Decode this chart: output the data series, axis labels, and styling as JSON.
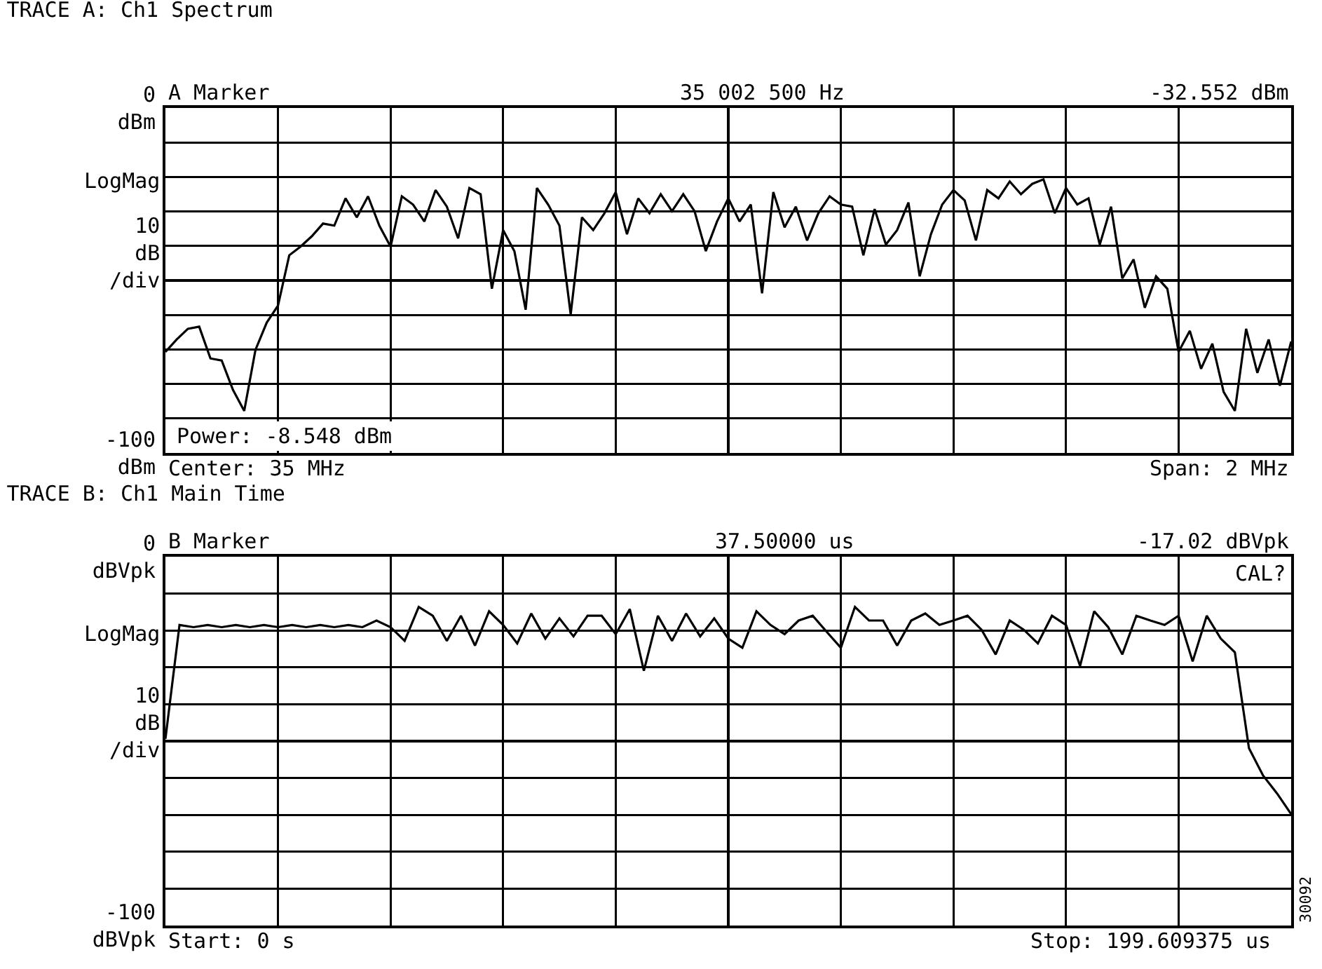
{
  "chart_data": [
    {
      "type": "line",
      "title": "TRACE A: Ch1 Spectrum",
      "ylabel": "10\ndB\n/div",
      "annotations": [
        "A Marker",
        "35 002 500 Hz",
        "-32.552 dBm",
        "LogMag",
        "Power: -8.548 dBm",
        "Center: 35 MHz",
        "Span: 2 MHz"
      ],
      "categories": [
        null,
        null,
        null,
        null,
        null,
        null,
        null,
        null,
        null,
        null,
        null,
        null,
        null,
        null,
        null,
        null,
        null,
        null,
        null,
        null,
        null,
        null,
        null,
        null,
        null,
        null,
        null,
        null,
        null,
        null,
        null,
        null,
        null,
        null,
        null,
        null,
        null,
        null,
        null,
        null,
        null,
        null,
        null,
        null,
        null,
        null,
        null,
        null,
        null,
        null,
        null,
        null,
        null,
        null,
        null,
        null,
        null,
        null,
        null,
        null,
        null,
        null,
        null,
        null,
        null,
        null,
        null,
        null,
        null,
        null,
        null,
        null,
        null,
        null,
        null,
        null,
        null,
        null,
        null,
        null,
        null,
        null,
        null,
        null,
        null,
        null,
        null,
        null,
        null,
        null,
        null,
        null,
        null,
        null,
        null,
        null,
        null,
        null,
        null,
        null,
        null
      ],
      "series": [
        {
          "color": "#000000",
          "values": [
            -70.7,
            -67.1,
            -64.0,
            -63.4,
            -72.6,
            -73.2,
            -81.7,
            -87.8,
            -70.1,
            -62.2,
            -57.3,
            -42.7,
            -40.2,
            -37.2,
            -33.5,
            -34.1,
            -26.2,
            -31.7,
            -25.6,
            -34.1,
            -40.2,
            -25.6,
            -28.0,
            -32.9,
            -23.8,
            -28.6,
            -37.8,
            -23.2,
            -25.0,
            -52.4,
            -35.4,
            -41.5,
            -58.5,
            -23.2,
            -28.0,
            -34.1,
            -59.8,
            -31.7,
            -35.4,
            -30.5,
            -24.4,
            -36.6,
            -26.2,
            -30.5,
            -25.0,
            -29.9,
            -25.0,
            -29.9,
            -41.5,
            -32.9,
            -26.2,
            -32.9,
            -28.0,
            -53.7,
            -24.4,
            -34.6,
            -28.6,
            -38.4,
            -30.5,
            -25.6,
            -28.0,
            -28.6,
            -42.7,
            -29.3,
            -39.6,
            -35.4,
            -27.4,
            -48.8,
            -36.6,
            -28.0,
            -23.8,
            -26.8,
            -38.4,
            -23.8,
            -26.2,
            -21.3,
            -25.0,
            -22.0,
            -20.7,
            -30.5,
            -23.2,
            -28.0,
            -26.2,
            -39.6,
            -28.6,
            -49.4,
            -43.9,
            -57.9,
            -48.8,
            -52.4,
            -70.7,
            -64.6,
            -75.6,
            -68.3,
            -82.3,
            -87.8,
            -64.0,
            -76.8,
            -67.1,
            -80.5,
            -67.7
          ]
        }
      ],
      "ylim": [
        -100,
        0
      ],
      "yticks": [
        {
          "value": 0,
          "label": "0\ndBm"
        },
        {
          "value": -10,
          "label": null
        },
        {
          "value": -20,
          "label": null
        },
        {
          "value": -30,
          "label": null
        },
        {
          "value": -40,
          "label": null
        },
        {
          "value": -50,
          "label": null
        },
        {
          "value": -60,
          "label": null
        },
        {
          "value": -70,
          "label": null
        },
        {
          "value": -80,
          "label": null
        },
        {
          "value": -90,
          "label": null
        },
        {
          "value": -100,
          "label": "-100\ndBm"
        }
      ],
      "grid": true,
      "tick_labels": "y",
      "line_style": "solid"
    },
    {
      "type": "line",
      "title": "TRACE B: Ch1 Main Time",
      "ylabel": "10\ndB\n/div",
      "annotations": [
        "B Marker",
        "37.50000 us",
        "-17.02 dBVpk",
        "CAL?",
        "LogMag",
        "Start: 0 s",
        "Stop: 199.609375 us",
        "30092"
      ],
      "categories": [
        null,
        null,
        null,
        null,
        null,
        null,
        null,
        null,
        null,
        null,
        null,
        null,
        null,
        null,
        null,
        null,
        null,
        null,
        null,
        null,
        null,
        null,
        null,
        null,
        null,
        null,
        null,
        null,
        null,
        null,
        null,
        null,
        null,
        null,
        null,
        null,
        null,
        null,
        null,
        null,
        null,
        null,
        null,
        null,
        null,
        null,
        null,
        null,
        null,
        null,
        null,
        null,
        null,
        null,
        null,
        null,
        null,
        null,
        null,
        null,
        null,
        null,
        null,
        null,
        null,
        null,
        null,
        null,
        null,
        null,
        null,
        null,
        null,
        null,
        null,
        null,
        null,
        null,
        null,
        null,
        null
      ],
      "series": [
        {
          "color": "#000000",
          "values": [
            -49.4,
            -18.5,
            -19.1,
            -18.5,
            -19.1,
            -18.5,
            -19.1,
            -18.5,
            -19.1,
            -18.5,
            -19.1,
            -18.5,
            -19.1,
            -18.5,
            -19.1,
            -17.3,
            -19.1,
            -22.8,
            -13.6,
            -16.0,
            -22.8,
            -16.0,
            -24.1,
            -14.8,
            -18.5,
            -23.5,
            -15.4,
            -22.2,
            -16.7,
            -21.6,
            -16.0,
            -16.0,
            -21.0,
            -14.2,
            -30.9,
            -16.0,
            -22.8,
            -15.4,
            -21.6,
            -16.7,
            -22.2,
            -24.7,
            -14.8,
            -18.5,
            -21.0,
            -17.3,
            -16.0,
            -20.4,
            -24.7,
            -13.6,
            -17.3,
            -17.3,
            -24.1,
            -17.3,
            -15.4,
            -18.5,
            -17.3,
            -16.0,
            -19.8,
            -26.5,
            -17.3,
            -19.8,
            -23.5,
            -16.0,
            -18.5,
            -29.6,
            -14.8,
            -19.1,
            -26.5,
            -16.0,
            -17.3,
            -18.5,
            -16.0,
            -28.4,
            -16.0,
            -22.2,
            -25.9,
            -51.9,
            -59.3,
            -64.2,
            -69.8
          ]
        }
      ],
      "ylim": [
        -100,
        0
      ],
      "yticks": [
        {
          "value": 0,
          "label": "0\ndBVpk"
        },
        {
          "value": -10,
          "label": null
        },
        {
          "value": -20,
          "label": null
        },
        {
          "value": -30,
          "label": null
        },
        {
          "value": -40,
          "label": null
        },
        {
          "value": -50,
          "label": null
        },
        {
          "value": -60,
          "label": null
        },
        {
          "value": -70,
          "label": null
        },
        {
          "value": -80,
          "label": null
        },
        {
          "value": -90,
          "label": null
        },
        {
          "value": -100,
          "label": "-100\ndBVpk"
        }
      ],
      "grid": true,
      "tick_labels": "y",
      "line_style": "solid"
    }
  ]
}
